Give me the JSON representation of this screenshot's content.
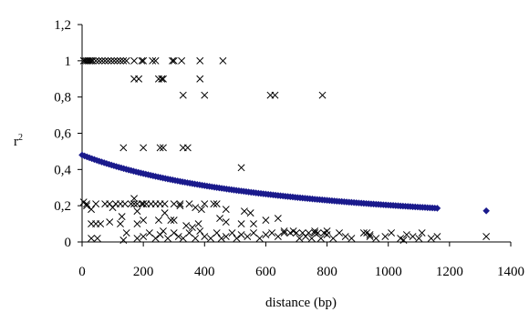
{
  "chart_data": {
    "type": "scatter",
    "xlabel": "distance (bp)",
    "ylabel": "r",
    "ylabel_superscript": "2",
    "xlim": [
      0,
      1400
    ],
    "ylim": [
      0,
      1.2
    ],
    "x_ticks": [
      0,
      200,
      400,
      600,
      800,
      1000,
      1200,
      1400
    ],
    "x_tick_labels": [
      "0",
      "200",
      "400",
      "600",
      "800",
      "1000",
      "1200",
      "1400"
    ],
    "y_ticks": [
      0,
      0.2,
      0.4,
      0.6,
      0.8,
      1.0,
      1.2
    ],
    "y_tick_labels": [
      "0",
      "0,2",
      "0,4",
      "0,6",
      "0,8",
      "1",
      "1,2"
    ],
    "grid": false,
    "series": [
      {
        "marker": "x",
        "color": "#000000",
        "points": [
          [
            5,
            1.0
          ],
          [
            10,
            1.0
          ],
          [
            15,
            1.0
          ],
          [
            20,
            1.0
          ],
          [
            25,
            1.0
          ],
          [
            30,
            1.0
          ],
          [
            35,
            1.0
          ],
          [
            45,
            1.0
          ],
          [
            55,
            1.0
          ],
          [
            65,
            1.0
          ],
          [
            75,
            1.0
          ],
          [
            85,
            1.0
          ],
          [
            95,
            1.0
          ],
          [
            105,
            1.0
          ],
          [
            115,
            1.0
          ],
          [
            125,
            1.0
          ],
          [
            135,
            1.0
          ],
          [
            145,
            1.0
          ],
          [
            170,
            1.0
          ],
          [
            195,
            1.0
          ],
          [
            200,
            1.0
          ],
          [
            230,
            1.0
          ],
          [
            240,
            1.0
          ],
          [
            295,
            1.0
          ],
          [
            300,
            1.0
          ],
          [
            325,
            1.0
          ],
          [
            385,
            1.0
          ],
          [
            460,
            1.0
          ],
          [
            170,
            0.9
          ],
          [
            185,
            0.9
          ],
          [
            250,
            0.9
          ],
          [
            260,
            0.9
          ],
          [
            265,
            0.9
          ],
          [
            385,
            0.9
          ],
          [
            330,
            0.81
          ],
          [
            400,
            0.81
          ],
          [
            615,
            0.81
          ],
          [
            630,
            0.81
          ],
          [
            785,
            0.81
          ],
          [
            135,
            0.52
          ],
          [
            200,
            0.52
          ],
          [
            255,
            0.52
          ],
          [
            265,
            0.52
          ],
          [
            330,
            0.52
          ],
          [
            345,
            0.52
          ],
          [
            520,
            0.41
          ],
          [
            5,
            0.22
          ],
          [
            15,
            0.21
          ],
          [
            45,
            0.21
          ],
          [
            75,
            0.21
          ],
          [
            90,
            0.21
          ],
          [
            110,
            0.21
          ],
          [
            125,
            0.21
          ],
          [
            140,
            0.21
          ],
          [
            160,
            0.21
          ],
          [
            170,
            0.21
          ],
          [
            180,
            0.21
          ],
          [
            195,
            0.21
          ],
          [
            200,
            0.21
          ],
          [
            210,
            0.21
          ],
          [
            225,
            0.21
          ],
          [
            240,
            0.21
          ],
          [
            255,
            0.21
          ],
          [
            270,
            0.21
          ],
          [
            300,
            0.21
          ],
          [
            320,
            0.21
          ],
          [
            350,
            0.21
          ],
          [
            400,
            0.21
          ],
          [
            430,
            0.21
          ],
          [
            440,
            0.21
          ],
          [
            15,
            0.2
          ],
          [
            30,
            0.18
          ],
          [
            170,
            0.24
          ],
          [
            180,
            0.17
          ],
          [
            320,
            0.2
          ],
          [
            370,
            0.19
          ],
          [
            390,
            0.18
          ],
          [
            470,
            0.18
          ],
          [
            530,
            0.17
          ],
          [
            550,
            0.16
          ],
          [
            100,
            0.19
          ],
          [
            130,
            0.14
          ],
          [
            270,
            0.16
          ],
          [
            300,
            0.12
          ],
          [
            30,
            0.1
          ],
          [
            45,
            0.1
          ],
          [
            60,
            0.1
          ],
          [
            90,
            0.11
          ],
          [
            125,
            0.1
          ],
          [
            180,
            0.1
          ],
          [
            200,
            0.12
          ],
          [
            250,
            0.12
          ],
          [
            290,
            0.12
          ],
          [
            340,
            0.09
          ],
          [
            360,
            0.08
          ],
          [
            380,
            0.1
          ],
          [
            450,
            0.13
          ],
          [
            470,
            0.11
          ],
          [
            520,
            0.1
          ],
          [
            560,
            0.1
          ],
          [
            600,
            0.12
          ],
          [
            640,
            0.13
          ],
          [
            30,
            0.02
          ],
          [
            50,
            0.02
          ],
          [
            135,
            0.01
          ],
          [
            145,
            0.05
          ],
          [
            180,
            0.02
          ],
          [
            200,
            0.03
          ],
          [
            220,
            0.05
          ],
          [
            240,
            0.02
          ],
          [
            255,
            0.04
          ],
          [
            265,
            0.06
          ],
          [
            280,
            0.02
          ],
          [
            300,
            0.05
          ],
          [
            315,
            0.03
          ],
          [
            330,
            0.02
          ],
          [
            350,
            0.05
          ],
          [
            370,
            0.02
          ],
          [
            385,
            0.06
          ],
          [
            400,
            0.03
          ],
          [
            420,
            0.02
          ],
          [
            440,
            0.05
          ],
          [
            455,
            0.02
          ],
          [
            470,
            0.03
          ],
          [
            490,
            0.05
          ],
          [
            505,
            0.02
          ],
          [
            520,
            0.04
          ],
          [
            540,
            0.03
          ],
          [
            560,
            0.05
          ],
          [
            580,
            0.02
          ],
          [
            600,
            0.04
          ],
          [
            620,
            0.05
          ],
          [
            640,
            0.03
          ],
          [
            660,
            0.05
          ],
          [
            680,
            0.05
          ],
          [
            700,
            0.05
          ],
          [
            710,
            0.02
          ],
          [
            720,
            0.05
          ],
          [
            730,
            0.03
          ],
          [
            740,
            0.05
          ],
          [
            750,
            0.02
          ],
          [
            760,
            0.05
          ],
          [
            770,
            0.05
          ],
          [
            780,
            0.02
          ],
          [
            790,
            0.05
          ],
          [
            800,
            0.04
          ],
          [
            820,
            0.02
          ],
          [
            840,
            0.05
          ],
          [
            860,
            0.03
          ],
          [
            880,
            0.02
          ],
          [
            920,
            0.05
          ],
          [
            940,
            0.04
          ],
          [
            960,
            0.02
          ],
          [
            990,
            0.03
          ],
          [
            1010,
            0.05
          ],
          [
            1040,
            0.02
          ],
          [
            1060,
            0.04
          ],
          [
            1080,
            0.03
          ],
          [
            1110,
            0.05
          ],
          [
            1140,
            0.02
          ],
          [
            1160,
            0.03
          ],
          [
            1320,
            0.03
          ],
          [
            660,
            0.06
          ],
          [
            690,
            0.06
          ],
          [
            760,
            0.06
          ],
          [
            800,
            0.06
          ],
          [
            930,
            0.05
          ],
          [
            940,
            0.03
          ],
          [
            1050,
            0.01
          ],
          [
            1100,
            0.02
          ]
        ]
      },
      {
        "marker": "diamond",
        "color": "#1a1a8c",
        "trend": {
          "a": 0.48,
          "b": 0.00085,
          "x_step": 8,
          "x_max": 1160,
          "extra_x": [
            1320
          ]
        }
      }
    ]
  }
}
